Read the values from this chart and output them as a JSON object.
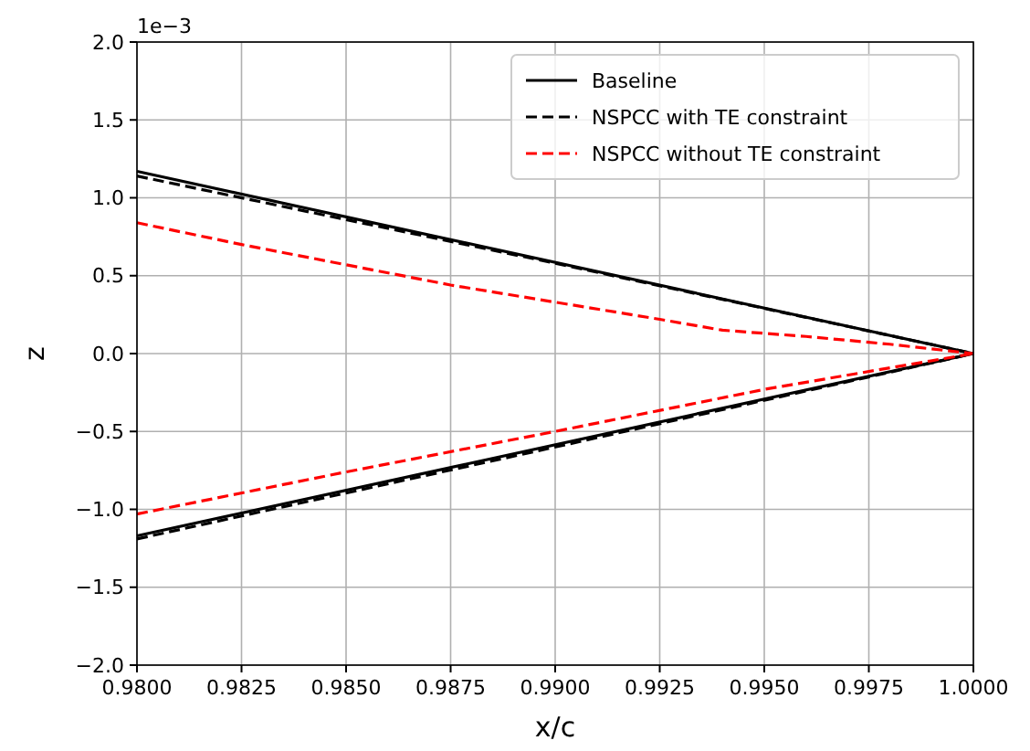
{
  "chart_data": {
    "type": "line",
    "xlabel": "x/c",
    "ylabel": "z",
    "annotations": [
      "1e−3"
    ],
    "xlim": [
      0.98,
      1.0
    ],
    "ylim": [
      -2,
      2
    ],
    "xticks": [
      {
        "value": 0.98,
        "label": "0.9800"
      },
      {
        "value": 0.9825,
        "label": "0.9825"
      },
      {
        "value": 0.985,
        "label": "0.9850"
      },
      {
        "value": 0.9875,
        "label": "0.9875"
      },
      {
        "value": 0.99,
        "label": "0.9900"
      },
      {
        "value": 0.9925,
        "label": "0.9925"
      },
      {
        "value": 0.995,
        "label": "0.9950"
      },
      {
        "value": 0.9975,
        "label": "0.9975"
      },
      {
        "value": 1.0,
        "label": "1.0000"
      }
    ],
    "yticks": [
      {
        "value": -2,
        "label": "−2.0"
      },
      {
        "value": -1.5,
        "label": "−1.5"
      },
      {
        "value": -1,
        "label": "−1.0"
      },
      {
        "value": -0.5,
        "label": "−0.5"
      },
      {
        "value": 0,
        "label": "0.0"
      },
      {
        "value": 0.5,
        "label": "0.5"
      },
      {
        "value": 1,
        "label": "1.0"
      },
      {
        "value": 1.5,
        "label": "1.5"
      },
      {
        "value": 2,
        "label": "2.0"
      }
    ],
    "grid": true,
    "legend": "top right",
    "series": [
      {
        "name": "Baseline",
        "color": "#000000",
        "line_style": "solid",
        "x": [
          0.98,
          1.0
        ],
        "values": [
          1.17,
          0
        ]
      },
      {
        "color": "#000000",
        "line_style": "solid",
        "x": [
          0.98,
          1.0
        ],
        "values": [
          -1.17,
          0
        ]
      },
      {
        "name": "NSPCC with TE constraint",
        "color": "#000000",
        "line_style": "dashed",
        "x": [
          0.98,
          0.99,
          1.0
        ],
        "values": [
          1.14,
          0.58,
          0
        ]
      },
      {
        "color": "#000000",
        "line_style": "dashed",
        "x": [
          0.98,
          0.99,
          1.0
        ],
        "values": [
          -1.19,
          -0.6,
          0
        ]
      },
      {
        "name": "NSPCC without TE constraint",
        "color": "#ff0000",
        "line_style": "dashed",
        "x": [
          0.98,
          0.9825,
          0.985,
          0.9875,
          0.99,
          0.9925,
          0.994,
          0.996,
          0.998,
          1.0
        ],
        "values": [
          0.84,
          0.7,
          0.57,
          0.44,
          0.33,
          0.22,
          0.15,
          0.11,
          0.06,
          0
        ]
      },
      {
        "color": "#ff0000",
        "line_style": "dashed",
        "x": [
          0.98,
          0.985,
          0.99,
          0.995,
          1.0
        ],
        "values": [
          -1.03,
          -0.76,
          -0.5,
          -0.23,
          0
        ]
      }
    ]
  }
}
